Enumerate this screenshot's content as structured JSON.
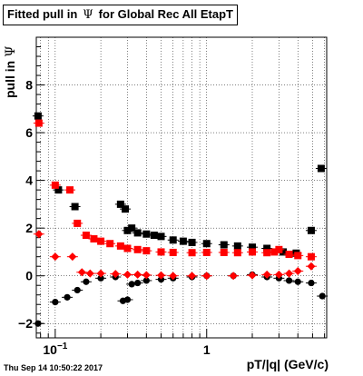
{
  "title_parts": {
    "prefix": "Fitted pull in",
    "symbol": "Ψ",
    "suffix": "for Global Rec All EtapT"
  },
  "ylabel_parts": {
    "text": "pull in",
    "symbol": "Ψ"
  },
  "xlabel": "pT/|q| (GeV/c)",
  "timestamp": "Thu Sep 14 10:50:22 2017",
  "chart_data": {
    "type": "scatter",
    "x_scale": "log",
    "xlim": [
      0.075,
      6.2
    ],
    "ylim": [
      -2.6,
      10.0
    ],
    "yticks_major": [
      -2,
      0,
      2,
      4,
      6,
      8
    ],
    "xtick_labels": [
      {
        "x": 0.1,
        "mant": "10",
        "exp": "−1"
      },
      {
        "x": 1,
        "mant": "1",
        "exp": ""
      }
    ],
    "grid": true,
    "series": [
      {
        "color": "#000000",
        "marker": "square",
        "points": [
          [
            0.077,
            6.7
          ],
          [
            0.105,
            3.6
          ],
          [
            0.135,
            2.9
          ],
          [
            0.27,
            3.0
          ],
          [
            0.29,
            2.8
          ],
          [
            0.3,
            1.9
          ],
          [
            0.32,
            2.0
          ],
          [
            0.35,
            1.8
          ],
          [
            0.4,
            1.75
          ],
          [
            0.45,
            1.7
          ],
          [
            0.5,
            1.65
          ],
          [
            0.6,
            1.5
          ],
          [
            0.7,
            1.45
          ],
          [
            0.8,
            1.4
          ],
          [
            1.0,
            1.35
          ],
          [
            1.3,
            1.3
          ],
          [
            1.6,
            1.25
          ],
          [
            2.0,
            1.2
          ],
          [
            2.5,
            1.15
          ],
          [
            3.2,
            1.0
          ],
          [
            3.9,
            0.95
          ],
          [
            4.9,
            1.9
          ],
          [
            5.7,
            4.5
          ]
        ]
      },
      {
        "color": "#ff0000",
        "marker": "square",
        "points": [
          [
            0.078,
            6.4
          ],
          [
            0.1,
            3.8
          ],
          [
            0.125,
            3.6
          ],
          [
            0.14,
            2.2
          ],
          [
            0.16,
            1.7
          ],
          [
            0.18,
            1.55
          ],
          [
            0.2,
            1.45
          ],
          [
            0.23,
            1.35
          ],
          [
            0.27,
            1.25
          ],
          [
            0.3,
            1.15
          ],
          [
            0.35,
            1.1
          ],
          [
            0.4,
            1.05
          ],
          [
            0.5,
            1.0
          ],
          [
            0.6,
            0.98
          ],
          [
            0.8,
            0.97
          ],
          [
            1.0,
            0.98
          ],
          [
            1.3,
            0.98
          ],
          [
            1.6,
            0.97
          ],
          [
            2.0,
            1.0
          ],
          [
            2.5,
            0.97
          ],
          [
            2.8,
            1.0
          ],
          [
            3.0,
            1.1
          ],
          [
            3.5,
            0.9
          ],
          [
            4.0,
            0.85
          ],
          [
            4.9,
            0.8
          ]
        ]
      },
      {
        "color": "#000000",
        "marker": "circle",
        "points": [
          [
            0.077,
            -2.0
          ],
          [
            0.1,
            -1.1
          ],
          [
            0.12,
            -0.9
          ],
          [
            0.14,
            -0.6
          ],
          [
            0.16,
            -0.25
          ],
          [
            0.2,
            -0.1
          ],
          [
            0.25,
            -0.05
          ],
          [
            0.28,
            -1.05
          ],
          [
            0.3,
            -1.0
          ],
          [
            0.32,
            -0.35
          ],
          [
            0.35,
            -0.3
          ],
          [
            0.4,
            -0.2
          ],
          [
            0.5,
            -0.15
          ],
          [
            0.6,
            -0.1
          ],
          [
            0.8,
            -0.05
          ],
          [
            1.0,
            0.0
          ],
          [
            1.5,
            0.0
          ],
          [
            2.0,
            0.05
          ],
          [
            2.5,
            -0.05
          ],
          [
            3.0,
            -0.1
          ],
          [
            3.5,
            -0.2
          ],
          [
            4.0,
            -0.25
          ],
          [
            4.9,
            -0.3
          ],
          [
            5.8,
            -0.85
          ]
        ]
      },
      {
        "color": "#ff0000",
        "marker": "diamond",
        "points": [
          [
            0.078,
            1.75
          ],
          [
            0.1,
            0.8
          ],
          [
            0.13,
            0.8
          ],
          [
            0.15,
            0.15
          ],
          [
            0.17,
            0.1
          ],
          [
            0.2,
            0.1
          ],
          [
            0.25,
            0.08
          ],
          [
            0.3,
            0.05
          ],
          [
            0.35,
            0.05
          ],
          [
            0.4,
            0.03
          ],
          [
            0.5,
            0.02
          ],
          [
            0.6,
            0.0
          ],
          [
            0.8,
            0.0
          ],
          [
            1.0,
            0.0
          ],
          [
            1.5,
            0.0
          ],
          [
            2.0,
            0.02
          ],
          [
            2.5,
            0.05
          ],
          [
            3.0,
            0.05
          ],
          [
            3.5,
            0.1
          ],
          [
            4.0,
            0.2
          ],
          [
            4.9,
            0.4
          ]
        ]
      }
    ]
  }
}
